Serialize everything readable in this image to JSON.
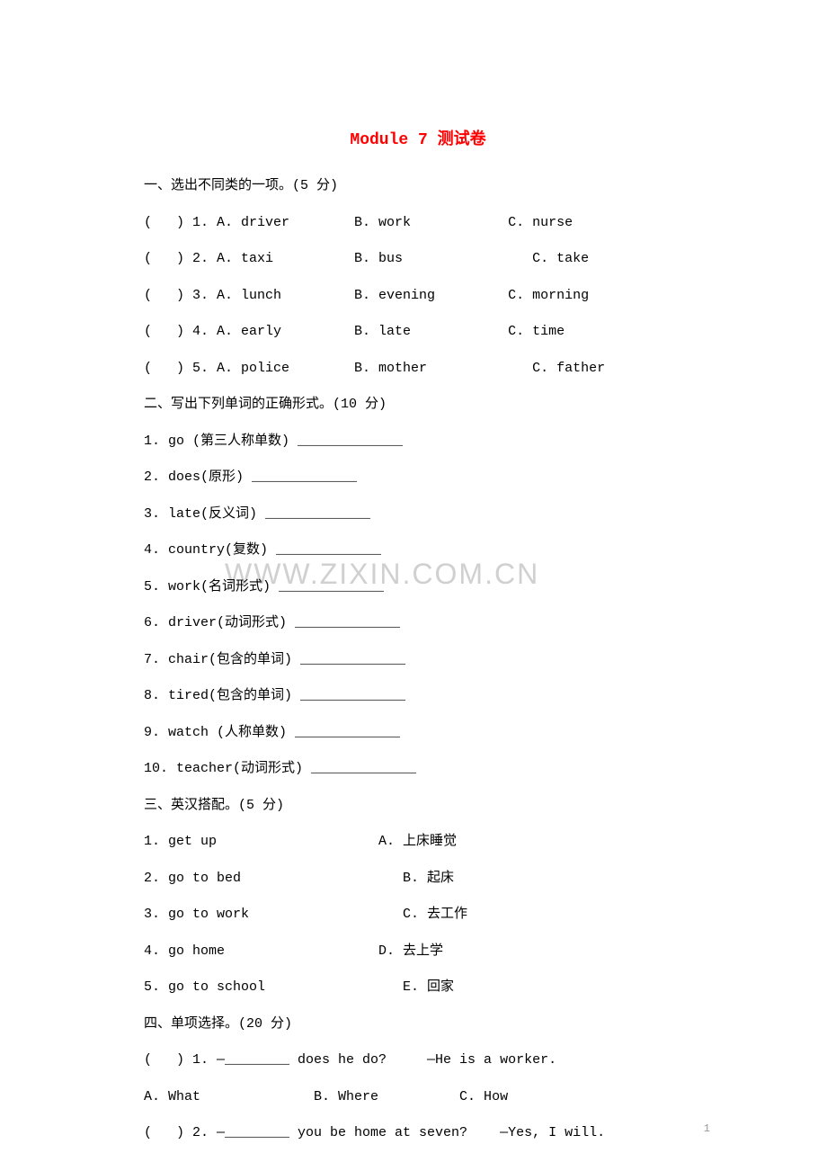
{
  "title": "Module 7 测试卷",
  "section1_header": "一、选出不同类的一项。(5 分)",
  "q1_1": "(   ) 1. A. driver        B. work            C. nurse",
  "q1_2": "(   ) 2. A. taxi          B. bus                C. take",
  "q1_3": "(   ) 3. A. lunch         B. evening         C. morning",
  "q1_4": "(   ) 4. A. early         B. late            C. time",
  "q1_5": "(   ) 5. A. police        B. mother             C. father",
  "section2_header": "二、写出下列单词的正确形式。(10 分)",
  "q2_1": "1. go (第三人称单数) _____________",
  "q2_2": "2. does(原形) _____________",
  "q2_3": "3. late(反义词) _____________",
  "q2_4": "4. country(复数) _____________",
  "q2_5": "5. work(名词形式) _____________",
  "q2_6": "6. driver(动词形式) _____________",
  "q2_7": "7. chair(包含的单词) _____________",
  "q2_8": "8. tired(包含的单词) _____________",
  "q2_9": "9. watch (人称单数) _____________",
  "q2_10": "10. teacher(动词形式) _____________",
  "section3_header": "三、英汉搭配。(5 分)",
  "q3_1": "1. get up                    A. 上床睡觉",
  "q3_2": "2. go to bed                    B. 起床",
  "q3_3": "3. go to work                   C. 去工作",
  "q3_4": "4. go home                   D. 去上学",
  "q3_5": "5. go to school                 E. 回家",
  "section4_header": "四、单项选择。(20 分)",
  "q4_1": "(   ) 1. —________ does he do?     —He is a worker.",
  "q4_1_opts": "A. What              B. Where          C. How",
  "q4_2": "(   ) 2. —________ you be home at seven?    —Yes, I will.",
  "watermark": "WWW.ZIXIN.COM.CN",
  "page_num": "1"
}
